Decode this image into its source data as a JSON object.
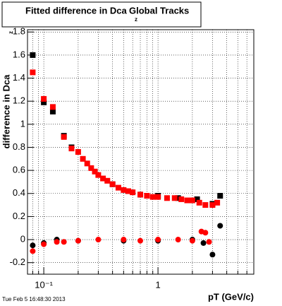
{
  "chart_data": {
    "type": "scatter",
    "title": "Fitted difference in Dca",
    "title_sub": "z",
    "title_rest": "Global Tracks",
    "ylabel": "difference in Dca",
    "ylabel_sub": "z",
    "xlabel": "pT (GeV/c)",
    "footer": "Tue Feb  5 16:48:30 2013",
    "xlog": true,
    "grid": true,
    "xlim": [
      0.072,
      6.9
    ],
    "ylim": [
      -0.3,
      1.82
    ],
    "xticks": [
      {
        "value": 0.1,
        "label": "10⁻¹"
      },
      1
    ],
    "xminor": [
      0.08,
      0.09,
      0.2,
      0.3,
      0.4,
      0.5,
      0.6,
      0.7,
      0.8,
      0.9,
      2,
      3,
      4,
      5,
      6
    ],
    "yticks": [
      -0.2,
      0,
      0.2,
      0.4,
      0.6,
      0.8,
      1,
      1.2,
      1.4,
      1.6,
      1.8
    ],
    "series": [
      {
        "color": "#000000",
        "marker": "square",
        "x": [
          0.08,
          0.1,
          0.12,
          0.15,
          0.175,
          0.4,
          0.7,
          1.0,
          1.5,
          2.2,
          3.0,
          3.5
        ],
        "values": [
          1.6,
          1.19,
          1.11,
          0.9,
          0.8,
          0.48,
          0.39,
          0.38,
          0.36,
          0.35,
          0.31,
          0.38
        ]
      },
      {
        "color": "#ff0000",
        "marker": "square",
        "x": [
          0.08,
          0.1,
          0.12,
          0.15,
          0.175,
          0.2,
          0.22,
          0.24,
          0.26,
          0.28,
          0.3,
          0.33,
          0.36,
          0.4,
          0.45,
          0.5,
          0.55,
          0.6,
          0.7,
          0.8,
          0.9,
          1.0,
          1.2,
          1.4,
          1.6,
          1.8,
          2.0,
          2.3,
          2.6,
          3.0,
          3.3
        ],
        "values": [
          1.45,
          1.22,
          1.15,
          0.89,
          0.79,
          0.76,
          0.7,
          0.66,
          0.62,
          0.59,
          0.56,
          0.53,
          0.51,
          0.48,
          0.45,
          0.43,
          0.42,
          0.41,
          0.39,
          0.38,
          0.37,
          0.37,
          0.36,
          0.36,
          0.35,
          0.34,
          0.34,
          0.32,
          0.3,
          0.3,
          0.32
        ]
      },
      {
        "color": "#000000",
        "marker": "circle",
        "x": [
          0.08,
          0.1,
          0.13,
          0.2,
          0.5,
          1.0,
          2.0,
          2.5,
          3.0,
          3.5
        ],
        "values": [
          -0.05,
          -0.03,
          0.0,
          -0.01,
          -0.01,
          -0.01,
          0.0,
          -0.03,
          -0.13,
          0.12
        ]
      },
      {
        "color": "#ff0000",
        "marker": "circle",
        "x": [
          0.08,
          0.1,
          0.13,
          0.15,
          0.2,
          0.3,
          0.5,
          0.7,
          1.0,
          1.5,
          2.0,
          2.4,
          2.6,
          2.8
        ],
        "values": [
          -0.1,
          -0.04,
          -0.02,
          -0.02,
          -0.01,
          0.0,
          0.0,
          -0.01,
          0.0,
          0.0,
          -0.01,
          0.07,
          0.06,
          -0.02
        ]
      }
    ]
  }
}
